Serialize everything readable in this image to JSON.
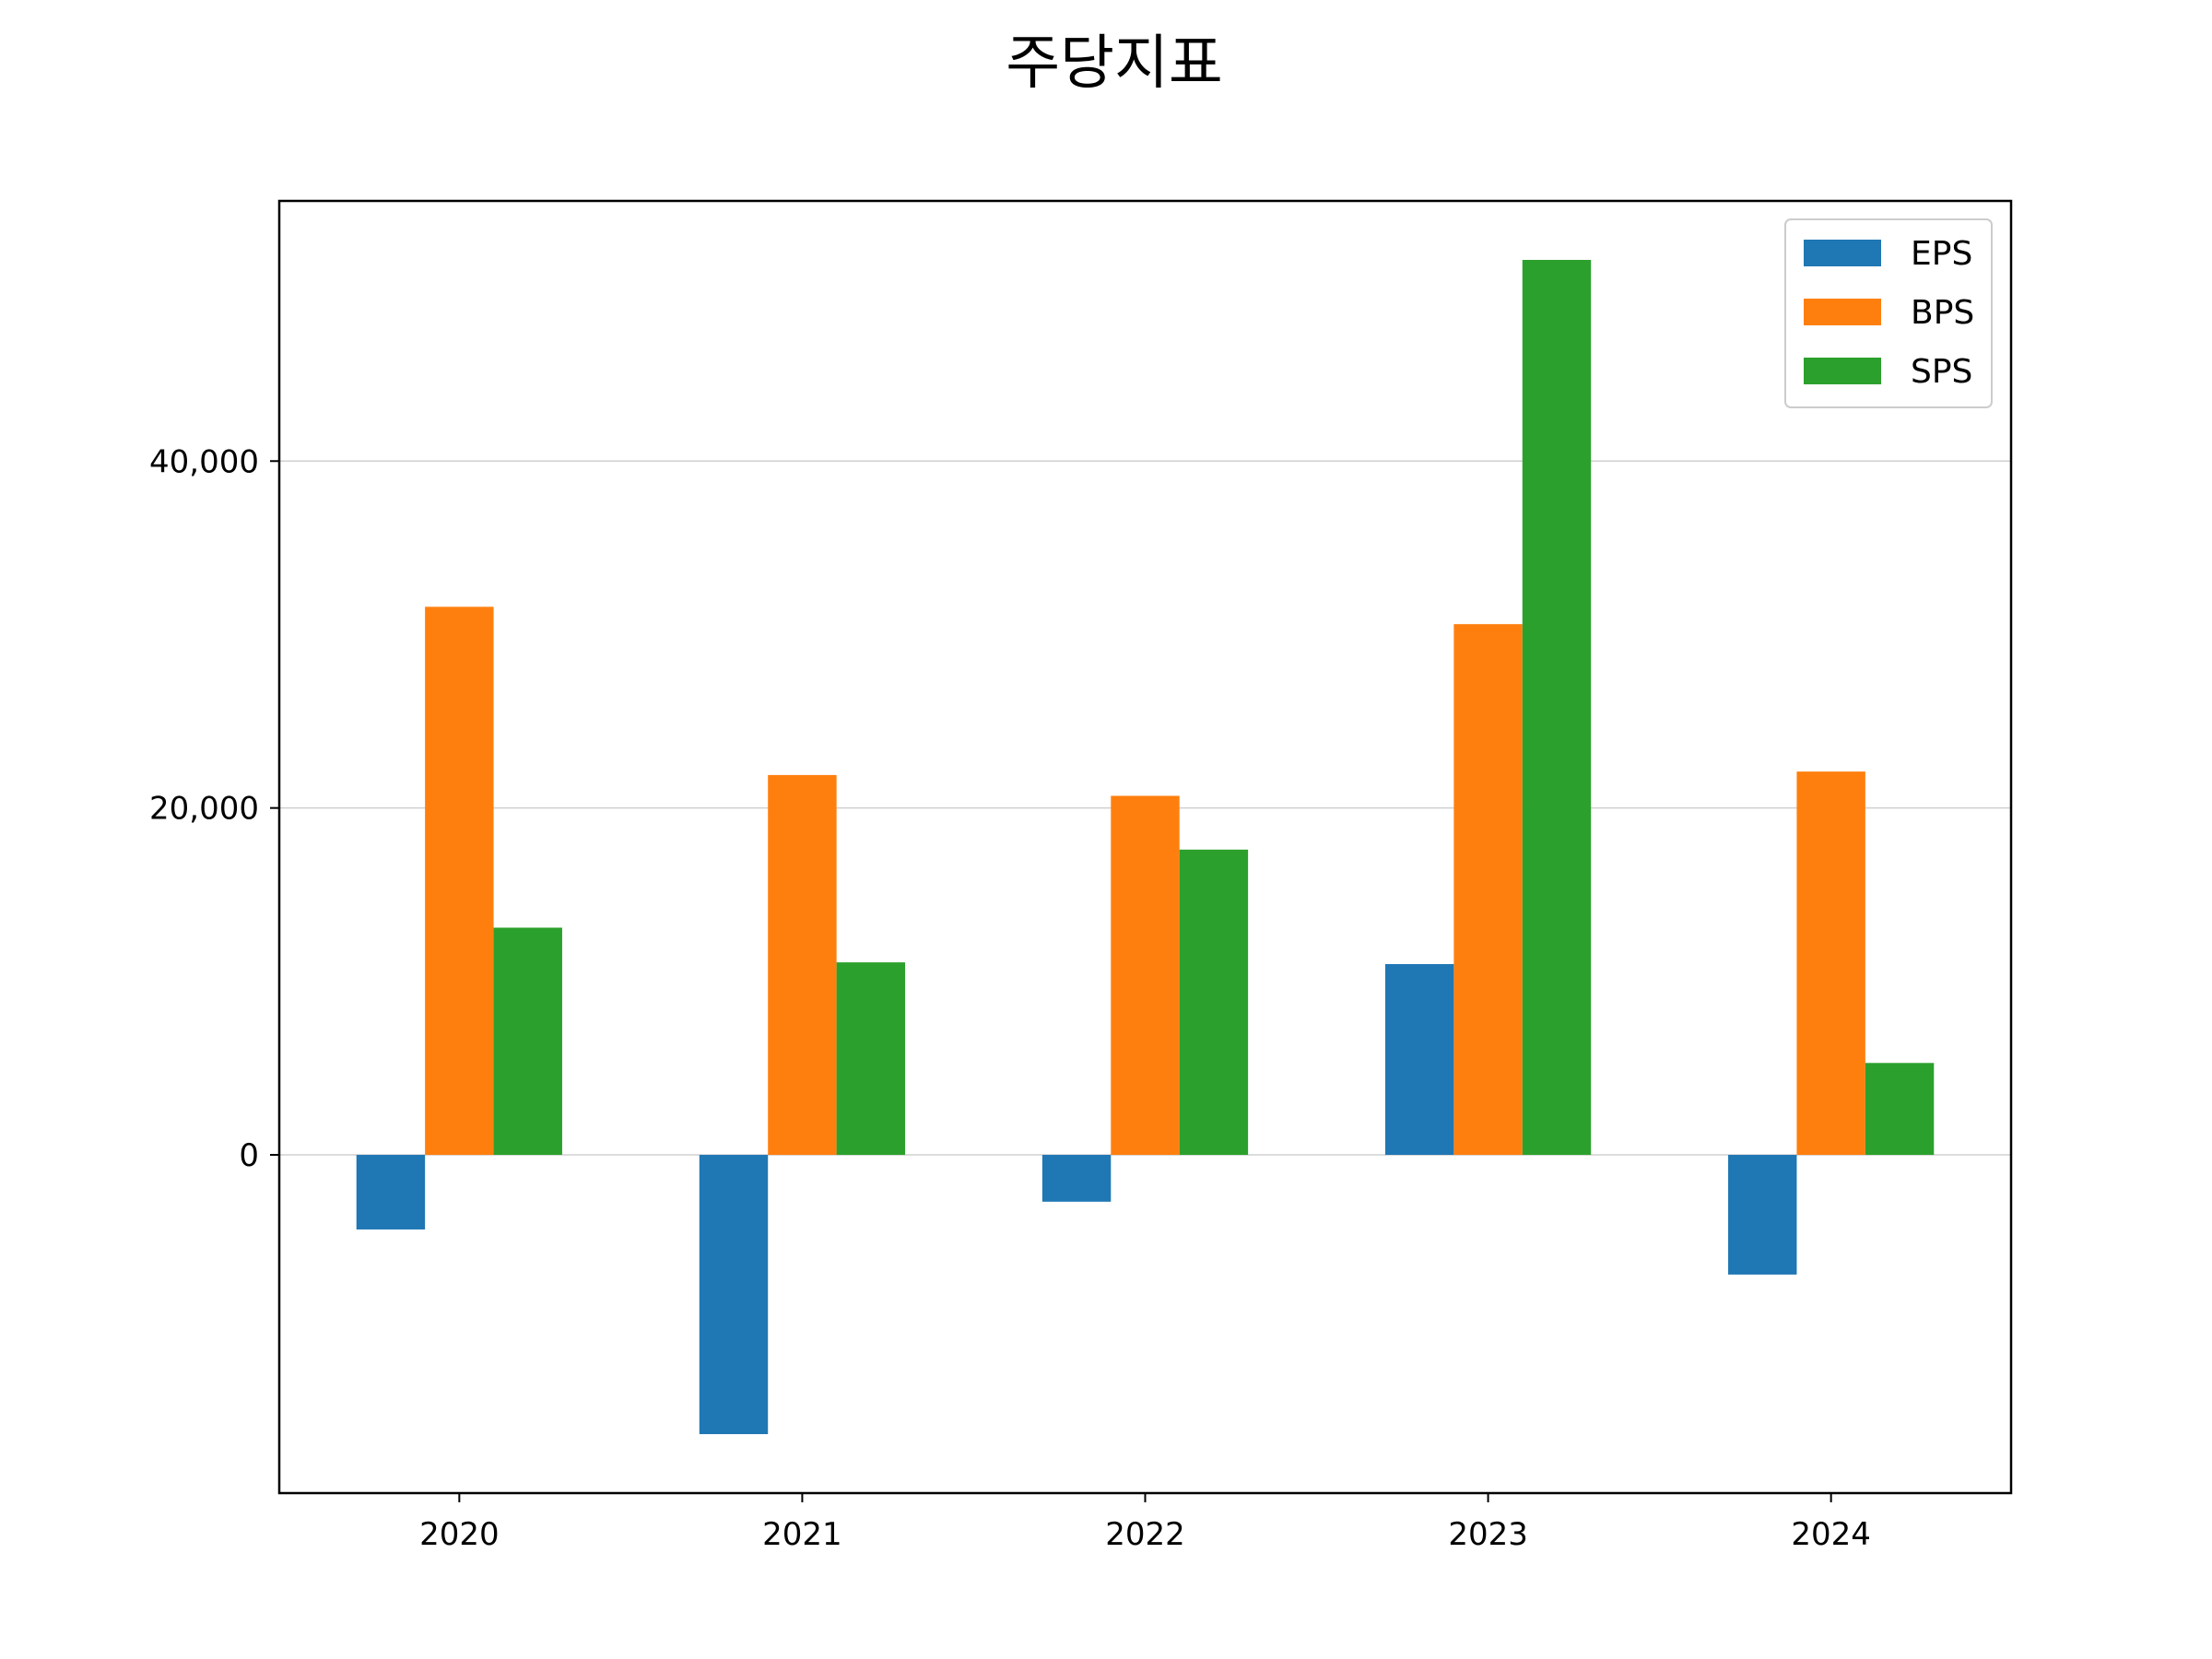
{
  "chart_data": {
    "type": "bar",
    "title": "주당지표",
    "xlabel": "",
    "ylabel": "",
    "categories": [
      "2020",
      "2021",
      "2022",
      "2023",
      "2024"
    ],
    "series": [
      {
        "name": "EPS",
        "color": "#1f77b4",
        "values": [
          -4300,
          -16100,
          -2700,
          11000,
          -6900
        ]
      },
      {
        "name": "BPS",
        "color": "#ff7f0e",
        "values": [
          31600,
          21900,
          20700,
          30600,
          22100
        ]
      },
      {
        "name": "SPS",
        "color": "#2ca02c",
        "values": [
          13100,
          11100,
          17600,
          51600,
          5300
        ]
      }
    ],
    "ylim": [
      -19500,
      55000
    ],
    "yticks": [
      0,
      20000,
      40000
    ],
    "ytick_labels": [
      "0",
      "20,000",
      "40,000"
    ],
    "grid": "y",
    "legend_position": "upper right"
  }
}
